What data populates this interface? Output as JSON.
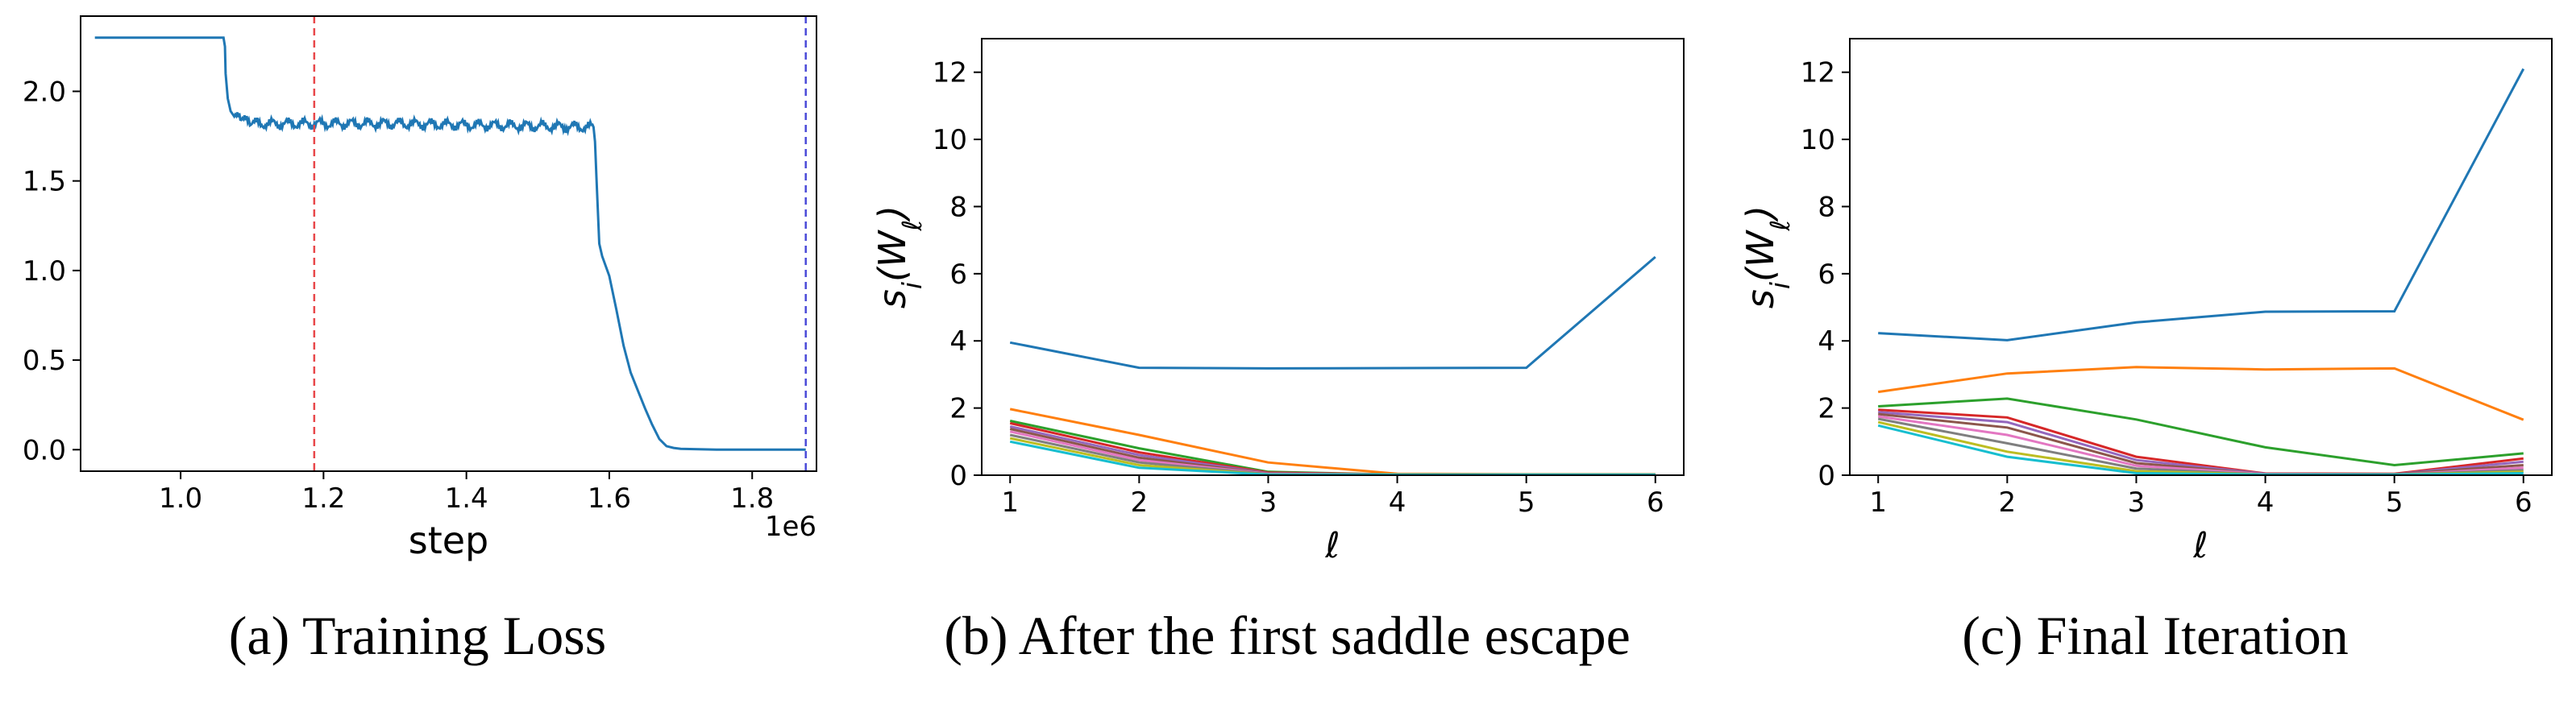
{
  "chart_data": [
    {
      "type": "line",
      "caption": "(a) Training Loss",
      "xlabel": "step",
      "ylabel": "",
      "x_offset_text": "1e6",
      "xlim": [
        0.86,
        1.89
      ],
      "ylim": [
        -0.12,
        2.42
      ],
      "xticks": [
        "1.0",
        "1.2",
        "1.4",
        "1.6",
        "1.8"
      ],
      "xtick_values": [
        1.0,
        1.2,
        1.4,
        1.6,
        1.8
      ],
      "yticks": [
        "0.0",
        "0.5",
        "1.0",
        "1.5",
        "2.0"
      ],
      "ytick_values": [
        0.0,
        0.5,
        1.0,
        1.5,
        2.0
      ],
      "vlines": [
        {
          "x": 1.187,
          "color": "#e8474a",
          "style": "dashed"
        },
        {
          "x": 1.875,
          "color": "#4a4ad8",
          "style": "dashed"
        }
      ],
      "series": [
        {
          "color": "#1f77b4",
          "x": [
            0.88,
            1.06,
            1.062,
            1.063,
            1.066,
            1.07,
            1.075,
            1.085,
            1.1,
            1.3,
            1.578,
            1.58,
            1.582,
            1.586,
            1.59,
            1.6,
            1.61,
            1.62,
            1.63,
            1.64,
            1.65,
            1.66,
            1.67,
            1.68,
            1.69,
            1.7,
            1.75,
            1.875
          ],
          "y": [
            2.3,
            2.3,
            2.25,
            2.1,
            1.96,
            1.89,
            1.86,
            1.84,
            1.82,
            1.82,
            1.8,
            1.72,
            1.52,
            1.15,
            1.08,
            0.97,
            0.78,
            0.58,
            0.43,
            0.33,
            0.23,
            0.14,
            0.06,
            0.02,
            0.01,
            0.005,
            0.0,
            0.0
          ]
        }
      ],
      "noise_region": {
        "from": 1.066,
        "to": 1.58,
        "amplitude": 0.035
      }
    },
    {
      "type": "line",
      "caption": "(b) After the first saddle escape",
      "xlabel": "ℓ",
      "ylabel": "s_i(W_ℓ)",
      "xlim": [
        0.78,
        6.22
      ],
      "ylim": [
        0,
        13
      ],
      "xticks": [
        "1",
        "2",
        "3",
        "4",
        "5",
        "6"
      ],
      "xtick_values": [
        1,
        2,
        3,
        4,
        5,
        6
      ],
      "yticks": [
        "0",
        "2",
        "4",
        "6",
        "8",
        "10",
        "12"
      ],
      "ytick_values": [
        0,
        2,
        4,
        6,
        8,
        10,
        12
      ],
      "x": [
        1,
        2,
        3,
        4,
        5,
        6
      ],
      "series": [
        {
          "color": "#1f77b4",
          "values": [
            3.95,
            3.2,
            3.18,
            3.19,
            3.2,
            6.5
          ]
        },
        {
          "color": "#ff7f0e",
          "values": [
            1.97,
            1.2,
            0.38,
            0.04,
            0.03,
            0.03
          ]
        },
        {
          "color": "#2ca02c",
          "values": [
            1.62,
            0.8,
            0.1,
            0.02,
            0.02,
            0.02
          ]
        },
        {
          "color": "#d62728",
          "values": [
            1.55,
            0.68,
            0.08,
            0.02,
            0.02,
            0.02
          ]
        },
        {
          "color": "#9467bd",
          "values": [
            1.45,
            0.6,
            0.06,
            0.02,
            0.02,
            0.02
          ]
        },
        {
          "color": "#8c564b",
          "values": [
            1.38,
            0.52,
            0.05,
            0.02,
            0.02,
            0.02
          ]
        },
        {
          "color": "#e377c2",
          "values": [
            1.3,
            0.45,
            0.04,
            0.02,
            0.02,
            0.02
          ]
        },
        {
          "color": "#7f7f7f",
          "values": [
            1.2,
            0.38,
            0.03,
            0.02,
            0.02,
            0.02
          ]
        },
        {
          "color": "#bcbd22",
          "values": [
            1.1,
            0.3,
            0.02,
            0.02,
            0.02,
            0.02
          ]
        },
        {
          "color": "#17becf",
          "values": [
            1.0,
            0.22,
            0.02,
            0.02,
            0.02,
            0.02
          ]
        }
      ]
    },
    {
      "type": "line",
      "caption": "(c) Final Iteration",
      "xlabel": "ℓ",
      "ylabel": "s_i(W_ℓ)",
      "xlim": [
        0.78,
        6.22
      ],
      "ylim": [
        0,
        13
      ],
      "xticks": [
        "1",
        "2",
        "3",
        "4",
        "5",
        "6"
      ],
      "xtick_values": [
        1,
        2,
        3,
        4,
        5,
        6
      ],
      "yticks": [
        "0",
        "2",
        "4",
        "6",
        "8",
        "10",
        "12"
      ],
      "ytick_values": [
        0,
        2,
        4,
        6,
        8,
        10,
        12
      ],
      "x": [
        1,
        2,
        3,
        4,
        5,
        6
      ],
      "series": [
        {
          "color": "#1f77b4",
          "values": [
            4.23,
            4.02,
            4.55,
            4.87,
            4.88,
            12.1
          ]
        },
        {
          "color": "#ff7f0e",
          "values": [
            2.48,
            3.03,
            3.22,
            3.15,
            3.18,
            1.65
          ]
        },
        {
          "color": "#2ca02c",
          "values": [
            2.05,
            2.28,
            1.66,
            0.83,
            0.3,
            0.65
          ]
        },
        {
          "color": "#d62728",
          "values": [
            1.95,
            1.72,
            0.55,
            0.05,
            0.04,
            0.5
          ]
        },
        {
          "color": "#9467bd",
          "values": [
            1.88,
            1.58,
            0.45,
            0.04,
            0.03,
            0.4
          ]
        },
        {
          "color": "#8c564b",
          "values": [
            1.82,
            1.42,
            0.36,
            0.03,
            0.03,
            0.3
          ]
        },
        {
          "color": "#e377c2",
          "values": [
            1.75,
            1.2,
            0.28,
            0.03,
            0.02,
            0.22
          ]
        },
        {
          "color": "#7f7f7f",
          "values": [
            1.68,
            0.95,
            0.2,
            0.02,
            0.02,
            0.15
          ]
        },
        {
          "color": "#bcbd22",
          "values": [
            1.58,
            0.7,
            0.12,
            0.02,
            0.02,
            0.1
          ]
        },
        {
          "color": "#17becf",
          "values": [
            1.48,
            0.55,
            0.06,
            0.02,
            0.02,
            0.06
          ]
        }
      ]
    }
  ]
}
